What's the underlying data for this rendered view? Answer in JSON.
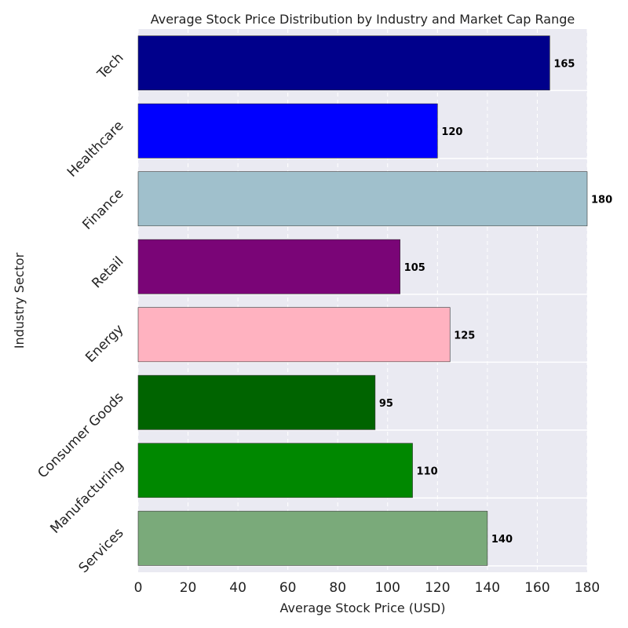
{
  "chart_data": {
    "type": "bar",
    "orientation": "horizontal",
    "title": "Average Stock Price Distribution by Industry and Market Cap Range",
    "xlabel": "Average Stock Price (USD)",
    "ylabel": "Industry Sector",
    "xlim": [
      0,
      180
    ],
    "xticks": [
      "0",
      "20",
      "40",
      "60",
      "80",
      "100",
      "120",
      "140",
      "160",
      "180"
    ],
    "grid": true,
    "categories": [
      "Tech",
      "Healthcare",
      "Finance",
      "Retail",
      "Energy",
      "Consumer Goods",
      "Manufacturing",
      "Services"
    ],
    "values": [
      165,
      120,
      180,
      105,
      125,
      95,
      110,
      140
    ],
    "data_labels": [
      "165",
      "120",
      "180",
      "105",
      "125",
      "95",
      "110",
      "140"
    ],
    "colors": [
      "#00008b",
      "#0000ff",
      "#a0c0cc",
      "#7a0577",
      "#ffb2c0",
      "#006400",
      "#008800",
      "#7aaa7a"
    ]
  }
}
